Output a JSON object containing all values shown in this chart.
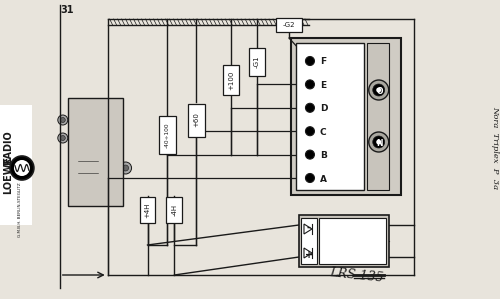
{
  "bg_color": "#e8e4dc",
  "line_color": "#1a1a1a",
  "page_num": "31",
  "title_right": "Nora  Triplex  P  3a",
  "lrs_label": "LRS 135",
  "conn_labels": [
    "F",
    "E",
    "D",
    "C",
    "B",
    "A"
  ],
  "sock_labels": [
    "O",
    "N"
  ],
  "res_labels": [
    "-40÷100",
    "+60",
    "+100",
    "-G1",
    "-G2"
  ],
  "heat_labels": [
    "+4H",
    "-4H"
  ]
}
